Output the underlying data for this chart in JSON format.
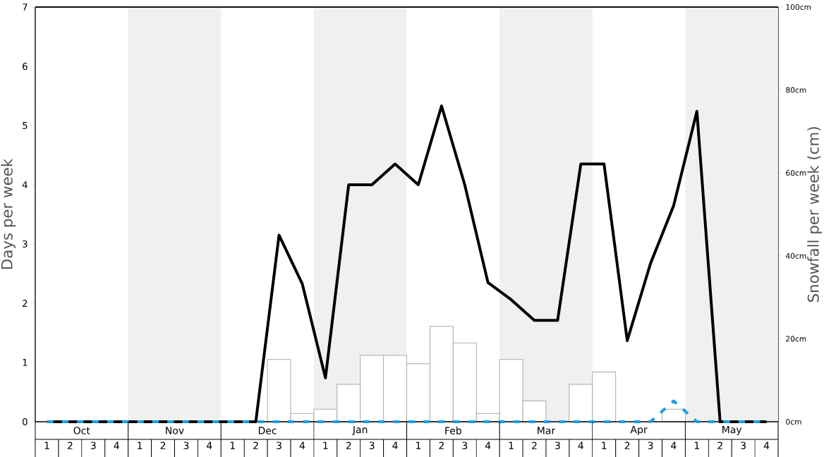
{
  "chart_data": {
    "type": "line",
    "ylabel": "Days per week",
    "y2label": "Snowfall per week (cm)",
    "categories": [
      "1",
      "2",
      "3",
      "4",
      "1",
      "2",
      "3",
      "4",
      "1",
      "2",
      "3",
      "4",
      "1",
      "2",
      "3",
      "4",
      "1",
      "2",
      "3",
      "4",
      "1",
      "2",
      "3",
      "4",
      "1",
      "2",
      "3",
      "4",
      "1",
      "2",
      "3",
      "4"
    ],
    "annotations": [
      "Oct",
      "Nov",
      "Dec",
      "Jan",
      "Feb",
      "Mar",
      "Apr",
      "May"
    ],
    "ylim": [
      0,
      7
    ],
    "yticks": [
      0,
      1,
      2,
      3,
      4,
      5,
      6,
      7
    ],
    "y2lim": [
      0,
      100
    ],
    "y2ticks": [
      {
        "value": 0,
        "label": "0cm"
      },
      {
        "value": 20,
        "label": "20cm"
      },
      {
        "value": 40,
        "label": "40cm"
      },
      {
        "value": 60,
        "label": "60cm"
      },
      {
        "value": 80,
        "label": "80cm"
      },
      {
        "value": 100,
        "label": "100cm"
      }
    ],
    "series": [
      {
        "type": "bar",
        "axis": "y2",
        "color": "#ffffff",
        "values": [
          0,
          0,
          0,
          0,
          0,
          0,
          0,
          0,
          0,
          0,
          15,
          2,
          3,
          9,
          16,
          16,
          14,
          23,
          19,
          2,
          15,
          5,
          0,
          9,
          12,
          0,
          0,
          3,
          0,
          0,
          0,
          0
        ]
      },
      {
        "color": "#000000",
        "values": [
          0,
          0,
          0,
          0,
          0,
          0,
          0,
          0,
          0,
          0,
          3.15,
          2.33,
          0.74,
          4.0,
          4.0,
          4.35,
          4.0,
          5.33,
          4.0,
          2.35,
          2.06,
          1.71,
          1.71,
          4.35,
          4.35,
          1.37,
          2.67,
          3.65,
          5.24,
          0,
          0,
          0
        ]
      },
      {
        "color": "#1a9ee5",
        "line_style": "dashed",
        "values": [
          0,
          0,
          0,
          0,
          0,
          0,
          0,
          0,
          0,
          0,
          0,
          0,
          0,
          0,
          0,
          0,
          0,
          0,
          0,
          0,
          0,
          0,
          0,
          0,
          0,
          0,
          0,
          0.35,
          0,
          0,
          0,
          0
        ]
      }
    ],
    "marker": "none",
    "grid": false
  }
}
